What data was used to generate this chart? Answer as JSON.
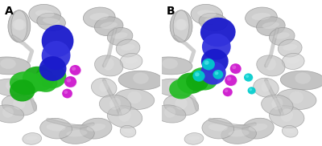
{
  "figsize": [
    4.0,
    1.82
  ],
  "dpi": 100,
  "background_color": "#ffffff",
  "label_A": "A",
  "label_B": "B",
  "label_fontsize": 10,
  "label_fontweight": "bold",
  "panel_bg": "#ffffff",
  "protein_base": "#b0b0b0",
  "protein_dark": "#888888",
  "protein_light": "#d8d8d8",
  "ligand_blue": "#1a1acc",
  "ligand_blue2": "#3333dd",
  "ligand_green": "#22bb22",
  "ligand_green2": "#11aa11",
  "ligand_magenta": "#cc11cc",
  "ligand_magenta2": "#dd44dd",
  "ligand_cyan": "#00cccc",
  "ligand_cyan2": "#22dddd",
  "border_color": "#aaaaaa"
}
